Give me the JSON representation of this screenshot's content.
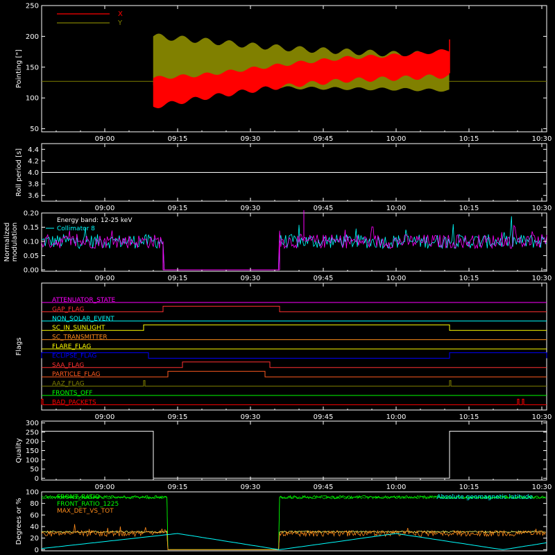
{
  "colors": {
    "background": "#000000",
    "axes": "#ffffff",
    "x": "#ff0000",
    "y": "#808000",
    "magenta": "#ff00ff",
    "cyan": "#00ffff",
    "green": "#00ff00",
    "orange": "#ff8c1a",
    "yellow": "#ffff00",
    "blue": "#0000ff"
  },
  "chart_data": [
    {
      "type": "area",
      "ylabel": "Pointing [\"]",
      "xticks": [
        "09:00",
        "09:15",
        "09:30",
        "09:45",
        "10:00",
        "10:15",
        "10:30"
      ],
      "yticks": [
        "50",
        "100",
        "150",
        "200",
        "250"
      ],
      "ylim": [
        45,
        250
      ],
      "xlim": [
        "08:47",
        "10:31"
      ],
      "legend_position": "top-left",
      "legend": [
        {
          "name": "X",
          "color": "#ff0000"
        },
        {
          "name": "Y",
          "color": "#808000"
        }
      ],
      "baseline_value": 127,
      "data_window": [
        "09:10",
        "10:11"
      ],
      "series": [
        {
          "name": "X",
          "t": [
            "09:10",
            "09:20",
            "09:30",
            "09:40",
            "09:50",
            "10:00",
            "10:11"
          ],
          "low": [
            82,
            96,
            108,
            118,
            125,
            128,
            132
          ],
          "high": [
            135,
            140,
            150,
            160,
            168,
            172,
            180
          ]
        },
        {
          "name": "Y",
          "t": [
            "09:10",
            "09:20",
            "09:30",
            "09:40",
            "09:50",
            "10:00",
            "10:11"
          ],
          "low": [
            118,
            117,
            116,
            114,
            113,
            112,
            110
          ],
          "high": [
            205,
            198,
            190,
            184,
            180,
            176,
            176
          ]
        }
      ]
    },
    {
      "type": "line",
      "ylabel": "Roll period [s]",
      "xticks": [
        "09:00",
        "09:15",
        "09:30",
        "09:45",
        "10:00",
        "10:15",
        "10:30"
      ],
      "yticks": [
        "3.6",
        "3.8",
        "4.0",
        "4.2",
        "4.4"
      ],
      "ylim": [
        3.5,
        4.5
      ],
      "xlim": [
        "08:47",
        "10:31"
      ],
      "series": [
        {
          "name": "",
          "t": [
            "08:47",
            "10:31"
          ],
          "values": [
            4.0,
            4.0
          ]
        }
      ]
    },
    {
      "type": "line",
      "ylabel": "Normalized modulation",
      "xticks": [
        "09:00",
        "09:15",
        "09:30",
        "09:45",
        "10:00",
        "10:15",
        "10:30"
      ],
      "yticks": [
        "0.00",
        "0.05",
        "0.10",
        "0.15",
        "0.20"
      ],
      "ylim": [
        -0.005,
        0.2
      ],
      "xlim": [
        "08:47",
        "10:31"
      ],
      "legend": [
        "Energy band: 12-25 keV",
        "Collimator 8"
      ],
      "gap": [
        "09:12",
        "09:36"
      ],
      "typical_level": 0.1,
      "peak_value": 0.21
    },
    {
      "type": "line",
      "ylabel": "Flags",
      "xticks": [
        "09:00",
        "09:15",
        "09:30",
        "09:45",
        "10:00",
        "10:15",
        "10:30"
      ],
      "xlim": [
        "08:47",
        "10:31"
      ],
      "flags": [
        {
          "name": "ATTENUATOR_STATE",
          "color": "#ff00ff",
          "on": []
        },
        {
          "name": "GAP_FLAG",
          "color": "#ff3030",
          "on": [
            [
              "09:12",
              "09:36"
            ]
          ]
        },
        {
          "name": "NON_SOLAR_EVENT",
          "color": "#00ffff",
          "on": []
        },
        {
          "name": "SC_IN_SUNLIGHT",
          "color": "#ffff00",
          "on": [
            [
              "09:08",
              "10:11"
            ]
          ]
        },
        {
          "name": "SC_TRANSMITTER",
          "color": "#ff8c1a",
          "on": []
        },
        {
          "name": "FLARE_FLAG",
          "color": "#ffff00",
          "on": []
        },
        {
          "name": "ECLIPSE_FLAG",
          "color": "#0000ff",
          "on": [
            [
              "08:47",
              "09:09"
            ],
            [
              "10:11",
              "10:31"
            ]
          ]
        },
        {
          "name": "SAA_FLAG",
          "color": "#ff3030",
          "on": [
            [
              "09:16",
              "09:34"
            ]
          ]
        },
        {
          "name": "PARTICLE_FLAG",
          "color": "#ff5a1f",
          "on": [
            [
              "09:13",
              "09:33"
            ]
          ]
        },
        {
          "name": "AAZ_FLAG",
          "color": "#808000",
          "on": [
            [
              "09:08",
              "09:08"
            ],
            [
              "10:11",
              "10:11"
            ]
          ]
        },
        {
          "name": "FRONTS_OFF",
          "color": "#00ff00",
          "on": []
        },
        {
          "name": "BAD_PACKETS",
          "color": "#ff0000",
          "on": [
            [
              "08:47",
              "08:47"
            ],
            [
              "10:25",
              "10:25"
            ],
            [
              "10:26",
              "10:26"
            ]
          ]
        }
      ]
    },
    {
      "type": "line",
      "ylabel": "Quality",
      "xticks": [
        "09:00",
        "09:15",
        "09:30",
        "09:45",
        "10:00",
        "10:15",
        "10:30"
      ],
      "yticks": [
        "0",
        "50",
        "100",
        "150",
        "200",
        "250",
        "300"
      ],
      "ylim": [
        -10,
        310
      ],
      "xlim": [
        "08:47",
        "10:31"
      ],
      "series": [
        {
          "name": "",
          "t": [
            "08:47",
            "09:10",
            "09:10",
            "10:11",
            "10:11",
            "10:31"
          ],
          "values": [
            255,
            255,
            0,
            0,
            255,
            255
          ]
        }
      ]
    },
    {
      "type": "line",
      "ylabel": "Degrees or %",
      "xticks": [
        "09:00",
        "09:15",
        "09:30",
        "09:45",
        "10:00",
        "10:15",
        "10:30"
      ],
      "yticks": [
        "0",
        "20",
        "40",
        "60",
        "80",
        "100"
      ],
      "ylim": [
        -2,
        100
      ],
      "xlim": [
        "08:47",
        "10:31"
      ],
      "legend": [
        {
          "name": "FRONT_RATIO",
          "color": "#00ff00"
        },
        {
          "name": "FRONT_RATIO_1225",
          "color": "#00ff00"
        },
        {
          "name": "MAX_DET_VS_TOT",
          "color": "#ff8c1a"
        }
      ],
      "right_label": "Absolute geomagnetic latitude",
      "gap": [
        "09:13",
        "09:36"
      ],
      "front_ratio_level": 91,
      "max_det_level": 28,
      "latitude": {
        "t": [
          "08:47",
          "09:15",
          "09:36",
          "10:00",
          "10:22",
          "10:31"
        ],
        "values": [
          2,
          28,
          0,
          28,
          0,
          12
        ]
      }
    }
  ]
}
